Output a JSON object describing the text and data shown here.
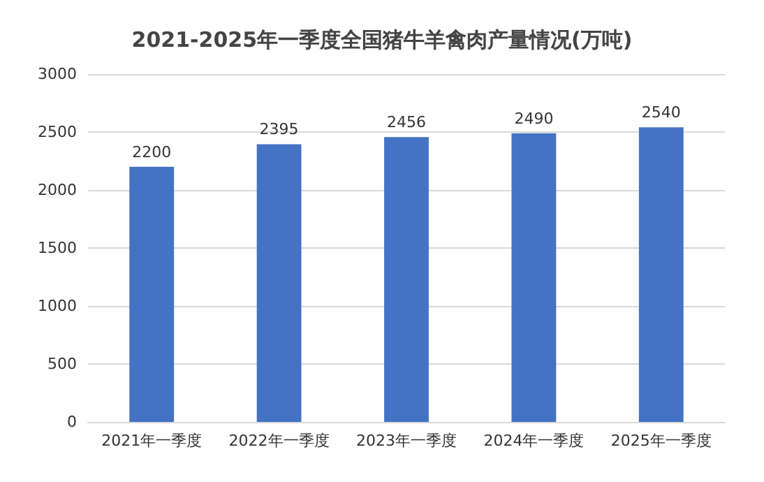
{
  "chart_data": {
    "type": "bar",
    "title": "2021-2025年一季度全国猪牛羊禽肉产量情况(万吨)",
    "categories": [
      "2021年一季度",
      "2022年一季度",
      "2023年一季度",
      "2024年一季度",
      "2025年一季度"
    ],
    "values": [
      2200,
      2395,
      2456,
      2490,
      2540
    ],
    "color": "#4472c4",
    "ylim": [
      0,
      3000
    ],
    "yticks": [
      0,
      500,
      1000,
      1500,
      2000,
      2500,
      3000
    ],
    "grid": "y",
    "data_labels": true
  }
}
